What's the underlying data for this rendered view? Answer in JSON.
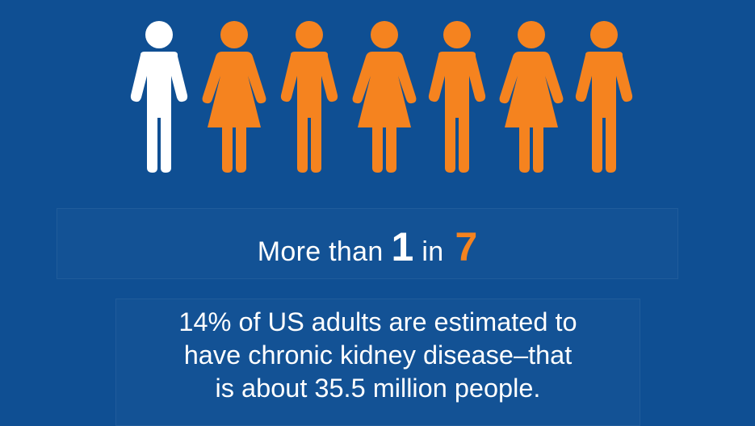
{
  "colors": {
    "background": "#0f4f93",
    "highlight_person": "#ffffff",
    "other_people": "#f5831f",
    "accent_number": "#f5831f"
  },
  "people": [
    {
      "icon": "male-person-icon",
      "color": "#ffffff",
      "highlighted": true
    },
    {
      "icon": "female-person-icon",
      "color": "#f5831f",
      "highlighted": false
    },
    {
      "icon": "male-person-icon",
      "color": "#f5831f",
      "highlighted": false
    },
    {
      "icon": "female-person-icon",
      "color": "#f5831f",
      "highlighted": false
    },
    {
      "icon": "male-person-icon",
      "color": "#f5831f",
      "highlighted": false
    },
    {
      "icon": "female-person-icon",
      "color": "#f5831f",
      "highlighted": false
    },
    {
      "icon": "male-person-icon",
      "color": "#f5831f",
      "highlighted": false
    }
  ],
  "headline": {
    "prefix": "More than",
    "numerator": "1",
    "middle": "in",
    "denominator": "7"
  },
  "caption": {
    "line1": "14% of US adults are estimated to",
    "line2": "have chronic kidney disease–that",
    "line3": "is about 35.5 million people."
  }
}
